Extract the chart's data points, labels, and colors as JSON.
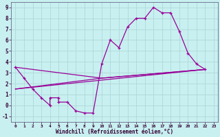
{
  "background_color": "#c8f0f0",
  "grid_color": "#b0d8da",
  "line_color": "#990099",
  "xlabel": "Windchill (Refroidissement éolien,°C)",
  "xlim": [
    -0.5,
    23.5
  ],
  "ylim": [
    -1.5,
    9.5
  ],
  "yticks": [
    -1,
    0,
    1,
    2,
    3,
    4,
    5,
    6,
    7,
    8,
    9
  ],
  "xticks": [
    0,
    1,
    2,
    3,
    4,
    5,
    6,
    7,
    8,
    9,
    10,
    11,
    12,
    13,
    14,
    15,
    16,
    17,
    18,
    19,
    20,
    21,
    22,
    23
  ],
  "main_line": [
    [
      0,
      3.5
    ],
    [
      1,
      2.5
    ],
    [
      2,
      1.5
    ],
    [
      3,
      0.7
    ],
    [
      4,
      0.0
    ],
    [
      4,
      0.7
    ],
    [
      5,
      0.7
    ],
    [
      5,
      0.3
    ],
    [
      6,
      0.3
    ],
    [
      7,
      -0.5
    ],
    [
      8,
      -0.7
    ],
    [
      9,
      -0.7
    ],
    [
      10,
      3.8
    ],
    [
      11,
      6.0
    ],
    [
      12,
      5.3
    ],
    [
      13,
      7.2
    ],
    [
      14,
      8.0
    ],
    [
      15,
      8.0
    ],
    [
      16,
      9.0
    ],
    [
      17,
      8.5
    ],
    [
      18,
      8.5
    ],
    [
      19,
      6.8
    ],
    [
      20,
      4.8
    ],
    [
      21,
      3.8
    ],
    [
      22,
      3.3
    ]
  ],
  "env_line1": [
    [
      0,
      3.5
    ],
    [
      10,
      2.5
    ],
    [
      22,
      3.3
    ]
  ],
  "env_line2": [
    [
      0,
      1.5
    ],
    [
      10,
      2.5
    ],
    [
      22,
      3.3
    ]
  ],
  "env_line3": [
    [
      0,
      1.5
    ],
    [
      22,
      3.3
    ]
  ],
  "figsize": [
    3.2,
    2.0
  ],
  "dpi": 100
}
